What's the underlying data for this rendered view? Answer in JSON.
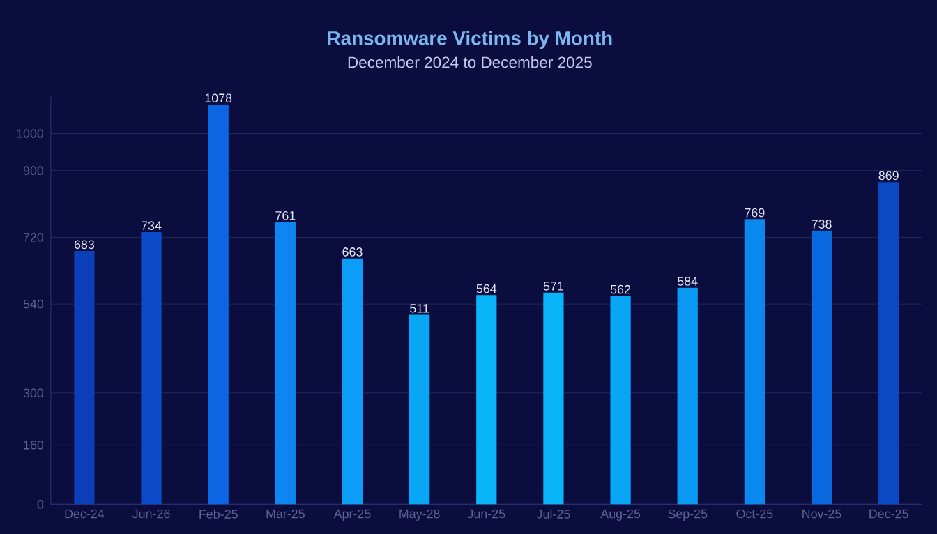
{
  "chart_data": {
    "type": "bar",
    "title": "Ransomware Victims by Month",
    "subtitle": "December 2024 to December 2025",
    "categories": [
      "Dec-24",
      "Jun-26",
      "Feb-25",
      "Mar-25",
      "Apr-25",
      "May-28",
      "Jun-25",
      "Jul-25",
      "Aug-25",
      "Sep-25",
      "Oct-25",
      "Nov-25",
      "Dec-25"
    ],
    "values": [
      683,
      734,
      1078,
      761,
      663,
      511,
      564,
      571,
      562,
      584,
      769,
      738,
      869
    ],
    "colors": [
      "#0a3fb8",
      "#0b4ac8",
      "#0c66e4",
      "#0e86f2",
      "#0c9ef6",
      "#0aa6f6",
      "#0ab4f8",
      "#0ab4f8",
      "#0aa6f6",
      "#0a9af4",
      "#0a88ee",
      "#0a68de",
      "#0a48c4"
    ],
    "ylim": [
      0,
      1100
    ],
    "yticks": [
      0,
      160,
      300,
      540,
      720,
      900,
      1000
    ],
    "grid": "y",
    "data_labels": true
  }
}
